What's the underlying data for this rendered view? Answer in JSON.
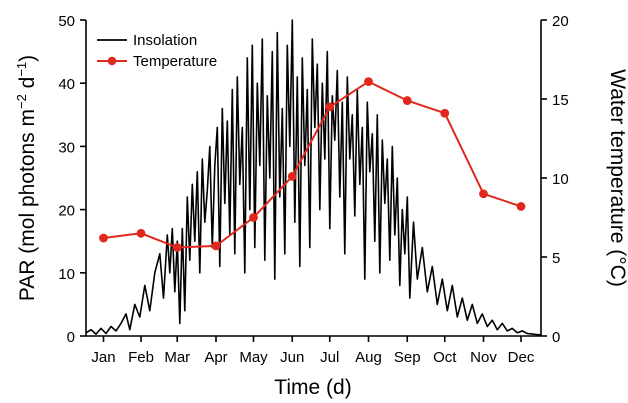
{
  "chart_data": {
    "type": "line",
    "title": "",
    "xlabel": "Time (d)",
    "ylabel_left": "PAR (mol photons m⁻² d⁻¹)",
    "ylabel_left_parts": [
      "PAR (mol photons m",
      "−2",
      " d",
      "−1",
      ")"
    ],
    "ylabel_right": "Water temperature (°C)",
    "x_range": [
      1,
      365
    ],
    "ylim_left": [
      0,
      50
    ],
    "ylim_right": [
      0,
      20
    ],
    "yticks_left": [
      0,
      10,
      20,
      30,
      40,
      50
    ],
    "yticks_right": [
      0,
      5,
      10,
      15,
      20
    ],
    "months": [
      "Jan",
      "Feb",
      "Mar",
      "Apr",
      "May",
      "Jun",
      "Jul",
      "Aug",
      "Sep",
      "Oct",
      "Nov",
      "Dec"
    ],
    "month_days": [
      15,
      45,
      74,
      105,
      135,
      166,
      196,
      227,
      258,
      288,
      319,
      349
    ],
    "grid": false,
    "legend_position": "top-left",
    "series": [
      {
        "name": "Insolation",
        "axis": "left",
        "color": "#000000",
        "style": "line",
        "x": [
          1,
          5,
          9,
          13,
          17,
          21,
          25,
          29,
          33,
          36,
          40,
          44,
          48,
          52,
          56,
          60,
          63,
          66,
          68,
          70,
          72,
          74,
          76,
          78,
          80,
          82,
          84,
          86,
          88,
          90,
          92,
          94,
          96,
          98,
          100,
          102,
          104,
          106,
          108,
          110,
          112,
          114,
          116,
          118,
          120,
          122,
          124,
          126,
          128,
          130,
          132,
          134,
          136,
          138,
          140,
          142,
          144,
          146,
          148,
          150,
          152,
          154,
          156,
          158,
          160,
          162,
          164,
          166,
          168,
          170,
          172,
          174,
          176,
          178,
          180,
          182,
          184,
          186,
          188,
          190,
          192,
          194,
          196,
          198,
          200,
          202,
          204,
          206,
          208,
          210,
          212,
          214,
          216,
          218,
          220,
          222,
          224,
          226,
          228,
          230,
          232,
          234,
          236,
          238,
          240,
          242,
          244,
          246,
          248,
          250,
          252,
          254,
          256,
          258,
          260,
          263,
          266,
          270,
          274,
          278,
          282,
          286,
          290,
          294,
          298,
          302,
          306,
          310,
          314,
          318,
          322,
          326,
          330,
          334,
          338,
          342,
          346,
          350,
          354,
          358,
          362,
          365
        ],
        "y": [
          0.5,
          1,
          0.3,
          1.2,
          0.4,
          1.5,
          0.8,
          2,
          3.5,
          1,
          5,
          3,
          8,
          4,
          10,
          13,
          6,
          16,
          10,
          17,
          7,
          15,
          2,
          17,
          4,
          22,
          12,
          24,
          15,
          26,
          10,
          28,
          18,
          23,
          30,
          14,
          27,
          33,
          11,
          36,
          21,
          34,
          16,
          39,
          13,
          41,
          24,
          33,
          10,
          44,
          20,
          46,
          14,
          40,
          27,
          47,
          12,
          38,
          25,
          45,
          9,
          48,
          22,
          36,
          13,
          46,
          30,
          50,
          18,
          41,
          11,
          44,
          27,
          39,
          14,
          47,
          33,
          43,
          20,
          40,
          28,
          45,
          17,
          38,
          31,
          42,
          22,
          37,
          13,
          41,
          28,
          35,
          19,
          39,
          24,
          33,
          9,
          37,
          26,
          32,
          15,
          35,
          10,
          31,
          21,
          28,
          12,
          30,
          16,
          25,
          8,
          20,
          13,
          22,
          6,
          18,
          9,
          14,
          7,
          11,
          5,
          9,
          4,
          8,
          3,
          6,
          2.5,
          5,
          2,
          3.5,
          1.5,
          2.5,
          1,
          2,
          0.8,
          1.2,
          0.5,
          0.8,
          0.4,
          0.3,
          0.2,
          0.2
        ]
      },
      {
        "name": "Temperature",
        "axis": "right",
        "color": "#e0281c",
        "style": "line-marker",
        "x": [
          15,
          45,
          74,
          105,
          135,
          166,
          196,
          227,
          258,
          288,
          319,
          349
        ],
        "y": [
          6.2,
          6.5,
          5.6,
          5.7,
          7.5,
          10.1,
          14.5,
          16.1,
          14.9,
          14.1,
          9.0,
          8.2
        ]
      }
    ]
  }
}
